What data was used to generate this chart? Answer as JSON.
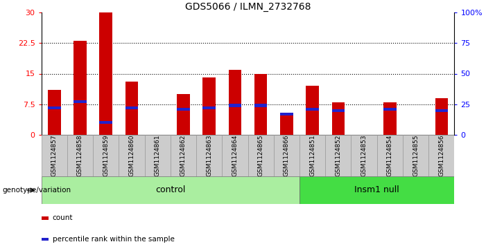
{
  "title": "GDS5066 / ILMN_2732768",
  "samples": [
    "GSM1124857",
    "GSM1124858",
    "GSM1124859",
    "GSM1124860",
    "GSM1124861",
    "GSM1124862",
    "GSM1124863",
    "GSM1124864",
    "GSM1124865",
    "GSM1124866",
    "GSM1124851",
    "GSM1124852",
    "GSM1124853",
    "GSM1124854",
    "GSM1124855",
    "GSM1124856"
  ],
  "counts": [
    11,
    23,
    30,
    13,
    0,
    10,
    14,
    16,
    15,
    5,
    12,
    8,
    0,
    8,
    0,
    9
  ],
  "percentiles": [
    22,
    27,
    10,
    22,
    0,
    21,
    22,
    24,
    24,
    17,
    21,
    20,
    0,
    21,
    0,
    20
  ],
  "n_control": 10,
  "n_insm1": 6,
  "control_label": "control",
  "insm1_label": "Insm1 null",
  "genotype_label": "genotype/variation",
  "left_yticks": [
    0,
    7.5,
    15,
    22.5,
    30
  ],
  "right_yticks": [
    0,
    25,
    50,
    75,
    100
  ],
  "left_ylim": [
    0,
    30
  ],
  "right_ylim": [
    0,
    100
  ],
  "bar_color": "#cc0000",
  "marker_color": "#2222cc",
  "sample_bg": "#cccccc",
  "control_bg": "#aaeea0",
  "insm1_bg": "#44dd44",
  "legend_count_label": "count",
  "legend_percentile_label": "percentile rank within the sample"
}
